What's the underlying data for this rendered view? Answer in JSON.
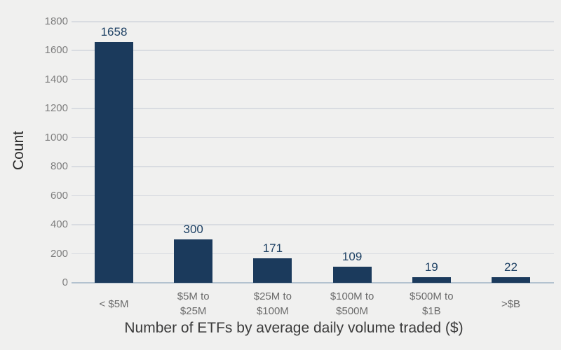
{
  "colors": {
    "background": "#f0f0ef",
    "bar": "#1b3a5c",
    "value_label": "#1e4164",
    "grid_line": "#d9dce1",
    "axis_line": "#b3c2cf",
    "y_tick_label": "#7e7e7e",
    "category_label": "#6b6b6b",
    "axis_title": "#3b3b3b",
    "y_axis_title": "#2a2a2a"
  },
  "chart_data": {
    "type": "bar",
    "title": "Number of ETFs by average daily volume traded ($)",
    "title_position": "bottom",
    "ylabel": "Count",
    "categories": [
      "< $5M",
      "$5M to\n$25M",
      "$25M to\n$100M",
      "$100M to\n$500M",
      "$500M to\n$1B",
      ">$B"
    ],
    "values": [
      1658,
      300,
      171,
      109,
      19,
      22
    ],
    "ylim": [
      0,
      1800
    ],
    "ytick_step": 200,
    "grid": true,
    "legend": false,
    "bar_value_labels": true
  }
}
